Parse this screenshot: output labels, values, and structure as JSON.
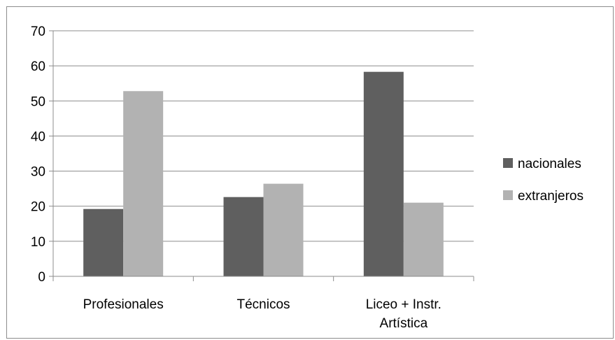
{
  "chart_data": {
    "type": "bar",
    "categories": [
      "Profesionales",
      "Técnicos",
      "Liceo + Instr. Artística"
    ],
    "category_lines": [
      [
        "Profesionales"
      ],
      [
        "Técnicos"
      ],
      [
        "Liceo + Instr.",
        "Artística"
      ]
    ],
    "series": [
      {
        "name": "nacionales",
        "color": "#5f5f5f",
        "values": [
          19.2,
          22.6,
          58.3
        ]
      },
      {
        "name": "extranjeros",
        "color": "#b2b2b2",
        "values": [
          52.8,
          26.4,
          21.0
        ]
      }
    ],
    "ylim": [
      0,
      70
    ],
    "yticks": [
      0,
      10,
      20,
      30,
      40,
      50,
      60,
      70
    ],
    "grid": true,
    "legend": "right",
    "title": "",
    "xlabel": "",
    "ylabel": ""
  }
}
